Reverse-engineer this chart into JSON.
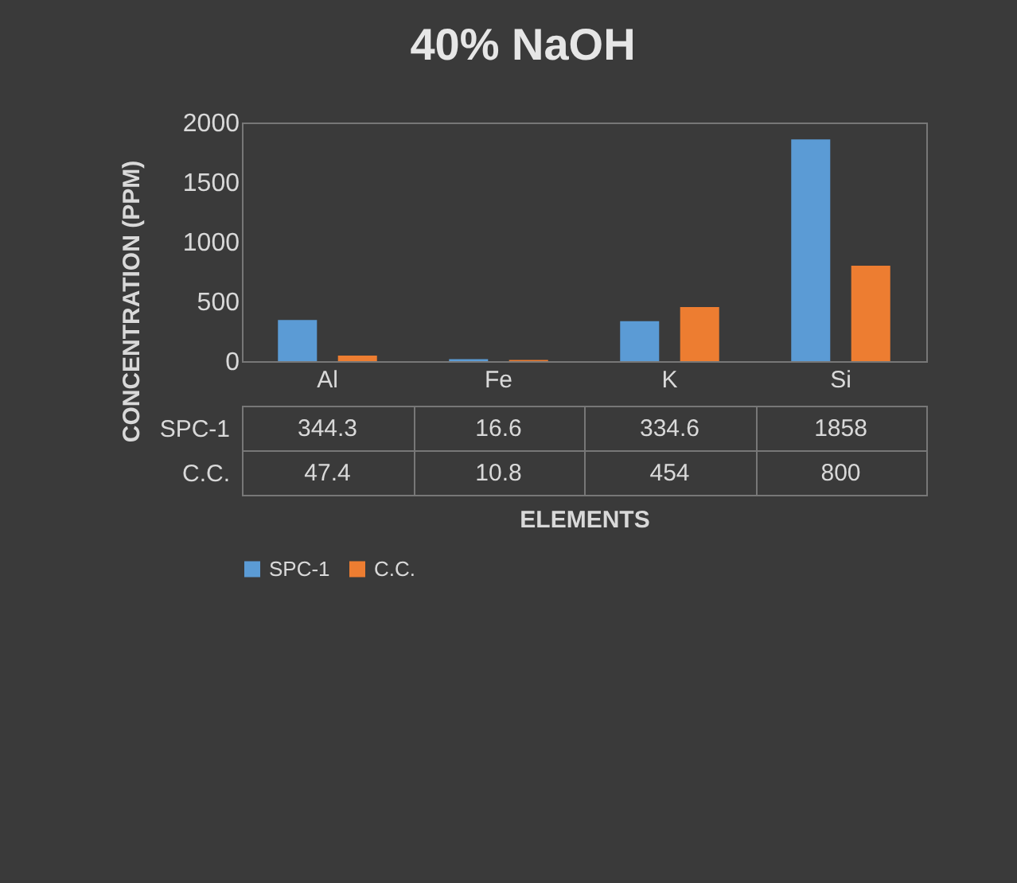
{
  "chart_data": {
    "type": "bar",
    "title": "40% NaOH",
    "xlabel": "ELEMENTS",
    "ylabel": "CONCENTRATION (PPM)",
    "categories": [
      "Al",
      "Fe",
      "K",
      "Si"
    ],
    "series": [
      {
        "name": "SPC-1",
        "color": "#5b9bd5",
        "values": [
          344.3,
          16.6,
          334.6,
          1858
        ]
      },
      {
        "name": "C.C.",
        "color": "#ed7d31",
        "values": [
          47.4,
          10.8,
          454,
          800
        ]
      }
    ],
    "ylim": [
      0,
      2000
    ],
    "yticks": [
      0,
      500,
      1000,
      1500,
      2000
    ],
    "grid": false,
    "legend": "bottom",
    "data_labels": true
  }
}
